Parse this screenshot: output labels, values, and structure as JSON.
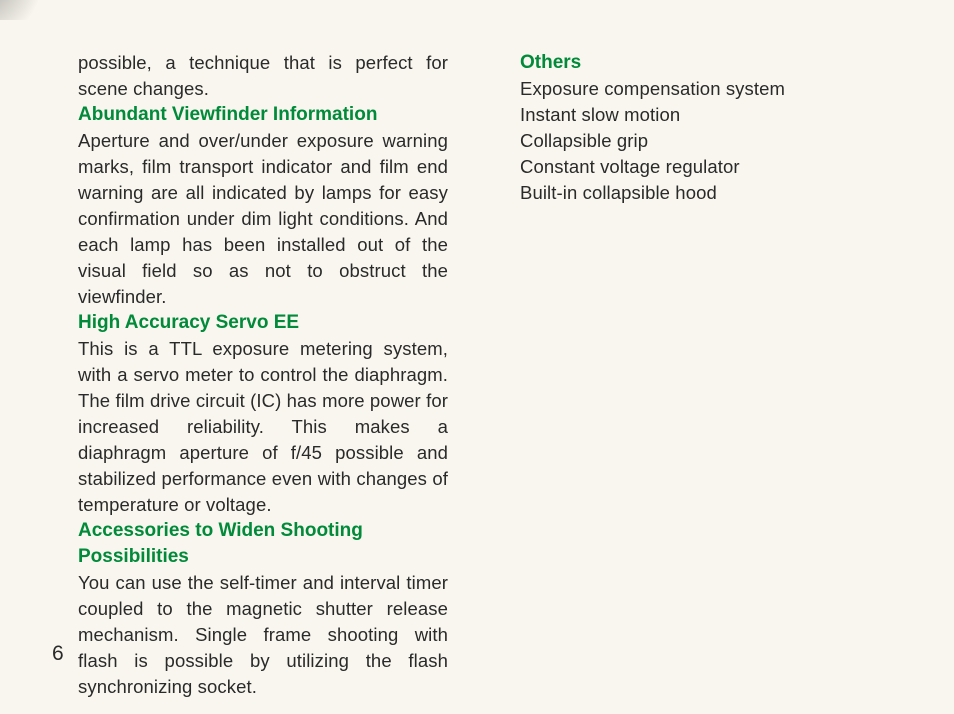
{
  "page": {
    "number": "6",
    "background_color": "#f8f6ee",
    "text_color": "#2a2a2a",
    "heading_color": "#008a3a",
    "body_fontsize": 18.5,
    "heading_fontsize": 19,
    "line_height": 26
  },
  "left": {
    "lead": "possible, a technique that is perfect for scene changes.",
    "sections": [
      {
        "heading": "Abundant Viewfinder Information",
        "body": "Aperture and over/under exposure warning marks, film transport indicator and film end warning are all indicated by lamps for easy confirmation under dim light conditions. And each lamp has been installed out of the visual field so as not to obstruct the viewfinder."
      },
      {
        "heading": "High Accuracy Servo EE",
        "body": "This is a TTL exposure metering system, with a servo meter to control the diaphragm. The film drive circuit (IC) has more power for increased reliability. This makes a diaphragm aperture of f/45 possible and stabilized performance even with changes of temperature or voltage."
      },
      {
        "heading": "Accessories to Widen Shooting Possibilities",
        "body": "You can use the self-timer and interval timer coupled to the magnetic shutter release mechanism. Single frame shooting with flash is possible by utilizing the flash synchronizing socket."
      }
    ]
  },
  "right": {
    "heading": "Others",
    "items": [
      "Exposure compensation system",
      "Instant slow motion",
      "Collapsible grip",
      "Constant voltage regulator",
      "Built-in collapsible hood"
    ]
  }
}
